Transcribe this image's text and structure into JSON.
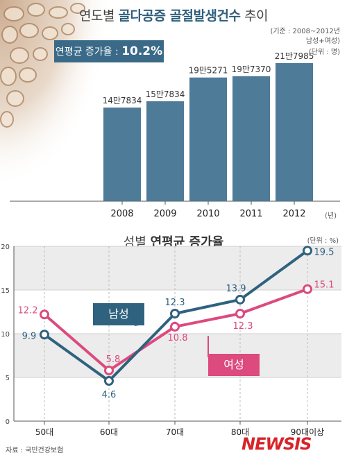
{
  "top": {
    "title_plain": "연도별",
    "title_bold": "골다공증 골절발생건수",
    "title_suffix": "추이",
    "note_basis": "(기준 : 2008~2012년",
    "note_gender": "남성+여성)",
    "note_unit": "(단위 : 명)",
    "avg_label": "연평균 증가율 :",
    "avg_value": "10.2%",
    "year_unit": "(년)"
  },
  "bottom": {
    "title_plain": "성별",
    "title_bold": "연평균 증가율",
    "unit": "(단위 : %)",
    "male_label": "남성",
    "female_label": "여성"
  },
  "source": "자료 : 국민건강보험",
  "logo": "NEWSIS",
  "colors": {
    "bar": "#4e7b98",
    "male": "#2f627f",
    "female": "#dc4a7e",
    "avg_box": "#3a6a87"
  },
  "chart_data": [
    {
      "type": "bar",
      "categories": [
        "2008",
        "2009",
        "2010",
        "2011",
        "2012"
      ],
      "values": [
        147834,
        157834,
        195271,
        197370,
        217985
      ],
      "labels": [
        "14만7834",
        "15만7834",
        "19만5271",
        "19만7370",
        "21만7985"
      ],
      "ylim": [
        0,
        230000
      ]
    },
    {
      "type": "line",
      "categories": [
        "50대",
        "60대",
        "70대",
        "80대",
        "90대이상"
      ],
      "yticks": [
        "0",
        "5",
        "10",
        "15",
        "20"
      ],
      "ylim": [
        0,
        20
      ],
      "series": [
        {
          "name": "남성",
          "values": [
            9.9,
            4.6,
            12.3,
            13.9,
            19.5
          ],
          "labels": [
            "9.9",
            "4.6",
            "12.3",
            "13.9",
            "19.5"
          ]
        },
        {
          "name": "여성",
          "values": [
            12.2,
            5.8,
            10.8,
            12.3,
            15.1
          ],
          "labels": [
            "12.2",
            "5.8",
            "10.8",
            "12.3",
            "15.1"
          ]
        }
      ]
    }
  ]
}
